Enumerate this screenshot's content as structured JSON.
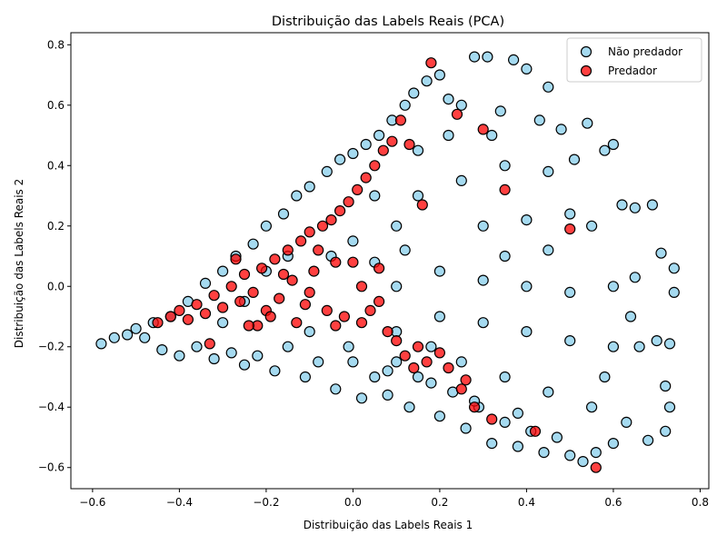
{
  "chart_data": {
    "type": "scatter",
    "title": "Distribuição das Labels Reais (PCA)",
    "xlabel": "Distribuição das Labels Reais  1",
    "ylabel": "Distribuição das Labels Reais  2",
    "xlim": [
      -0.65,
      0.82
    ],
    "ylim": [
      -0.67,
      0.84
    ],
    "xticks": [
      -0.6,
      -0.4,
      -0.2,
      0.0,
      0.2,
      0.4,
      0.6,
      0.8
    ],
    "yticks": [
      -0.6,
      -0.4,
      -0.2,
      0.0,
      0.2,
      0.4,
      0.6,
      0.8
    ],
    "xtick_labels": [
      "−0.6",
      "−0.4",
      "−0.2",
      "0.0",
      "0.2",
      "0.4",
      "0.6",
      "0.8"
    ],
    "ytick_labels": [
      "−0.6",
      "−0.4",
      "−0.2",
      "0.0",
      "0.2",
      "0.4",
      "0.6",
      "0.8"
    ],
    "grid": false,
    "legend_position": "top-right",
    "series": [
      {
        "name": "Não predador",
        "color": "#87CEEB",
        "edge_color": "#000000",
        "points": [
          [
            -0.58,
            -0.19
          ],
          [
            -0.55,
            -0.17
          ],
          [
            -0.52,
            -0.16
          ],
          [
            -0.5,
            -0.14
          ],
          [
            -0.48,
            -0.17
          ],
          [
            -0.46,
            -0.12
          ],
          [
            -0.44,
            -0.21
          ],
          [
            -0.42,
            -0.1
          ],
          [
            -0.4,
            -0.23
          ],
          [
            -0.38,
            -0.05
          ],
          [
            -0.36,
            -0.2
          ],
          [
            -0.34,
            0.01
          ],
          [
            -0.32,
            -0.24
          ],
          [
            -0.3,
            0.05
          ],
          [
            -0.28,
            -0.22
          ],
          [
            -0.27,
            0.1
          ],
          [
            -0.25,
            -0.26
          ],
          [
            -0.23,
            0.14
          ],
          [
            -0.22,
            -0.23
          ],
          [
            -0.2,
            0.2
          ],
          [
            -0.18,
            -0.28
          ],
          [
            -0.16,
            0.24
          ],
          [
            -0.15,
            -0.2
          ],
          [
            -0.13,
            0.3
          ],
          [
            -0.11,
            -0.3
          ],
          [
            -0.1,
            0.33
          ],
          [
            -0.08,
            -0.25
          ],
          [
            -0.06,
            0.38
          ],
          [
            -0.04,
            -0.34
          ],
          [
            -0.03,
            0.42
          ],
          [
            -0.01,
            -0.2
          ],
          [
            0.0,
            0.44
          ],
          [
            0.02,
            -0.37
          ],
          [
            0.03,
            0.47
          ],
          [
            0.05,
            -0.3
          ],
          [
            0.06,
            0.5
          ],
          [
            0.08,
            -0.36
          ],
          [
            0.09,
            0.55
          ],
          [
            0.1,
            -0.25
          ],
          [
            0.12,
            0.6
          ],
          [
            0.13,
            -0.4
          ],
          [
            0.14,
            0.64
          ],
          [
            0.15,
            -0.3
          ],
          [
            0.17,
            0.68
          ],
          [
            0.18,
            -0.2
          ],
          [
            0.2,
            0.7
          ],
          [
            0.2,
            -0.43
          ],
          [
            0.22,
            0.62
          ],
          [
            0.23,
            -0.35
          ],
          [
            0.25,
            0.6
          ],
          [
            0.26,
            -0.47
          ],
          [
            0.28,
            0.76
          ],
          [
            0.29,
            -0.4
          ],
          [
            0.31,
            0.76
          ],
          [
            0.32,
            -0.52
          ],
          [
            0.34,
            0.58
          ],
          [
            0.35,
            -0.45
          ],
          [
            0.37,
            0.75
          ],
          [
            0.38,
            -0.53
          ],
          [
            0.4,
            0.72
          ],
          [
            0.41,
            -0.48
          ],
          [
            0.43,
            0.55
          ],
          [
            0.44,
            -0.55
          ],
          [
            0.45,
            0.66
          ],
          [
            0.47,
            -0.5
          ],
          [
            0.48,
            0.52
          ],
          [
            0.5,
            -0.56
          ],
          [
            0.51,
            0.42
          ],
          [
            0.53,
            -0.58
          ],
          [
            0.54,
            0.54
          ],
          [
            0.56,
            -0.55
          ],
          [
            0.58,
            0.45
          ],
          [
            0.6,
            -0.52
          ],
          [
            0.6,
            0.47
          ],
          [
            0.62,
            0.27
          ],
          [
            0.63,
            -0.45
          ],
          [
            0.65,
            0.26
          ],
          [
            0.66,
            -0.2
          ],
          [
            0.68,
            -0.51
          ],
          [
            0.69,
            0.27
          ],
          [
            0.7,
            -0.18
          ],
          [
            0.71,
            0.11
          ],
          [
            0.72,
            -0.48
          ],
          [
            0.73,
            -0.19
          ],
          [
            0.74,
            0.06
          ],
          [
            0.74,
            -0.02
          ],
          [
            0.72,
            -0.33
          ],
          [
            0.73,
            -0.4
          ],
          [
            0.15,
            0.3
          ],
          [
            0.25,
            0.35
          ],
          [
            0.35,
            0.4
          ],
          [
            0.45,
            0.38
          ],
          [
            0.3,
            0.2
          ],
          [
            0.4,
            0.22
          ],
          [
            0.5,
            0.24
          ],
          [
            0.55,
            0.2
          ],
          [
            0.1,
            0.0
          ],
          [
            0.2,
            0.05
          ],
          [
            0.3,
            0.02
          ],
          [
            0.4,
            0.0
          ],
          [
            0.5,
            -0.02
          ],
          [
            0.6,
            0.0
          ],
          [
            0.65,
            0.03
          ],
          [
            0.2,
            -0.1
          ],
          [
            0.3,
            -0.12
          ],
          [
            0.4,
            -0.15
          ],
          [
            0.5,
            -0.18
          ],
          [
            0.6,
            -0.2
          ],
          [
            0.1,
            -0.15
          ],
          [
            0.25,
            -0.25
          ],
          [
            0.35,
            -0.3
          ],
          [
            0.45,
            -0.35
          ],
          [
            0.55,
            -0.4
          ],
          [
            0.0,
            0.15
          ],
          [
            0.1,
            0.2
          ],
          [
            -0.05,
            0.1
          ],
          [
            0.05,
            0.3
          ],
          [
            0.15,
            0.45
          ],
          [
            0.22,
            0.5
          ],
          [
            0.32,
            0.5
          ],
          [
            -0.1,
            -0.15
          ],
          [
            0.0,
            -0.25
          ],
          [
            0.08,
            -0.28
          ],
          [
            0.18,
            -0.32
          ],
          [
            0.28,
            -0.38
          ],
          [
            0.38,
            -0.42
          ],
          [
            0.58,
            -0.3
          ],
          [
            0.64,
            -0.1
          ],
          [
            -0.2,
            0.05
          ],
          [
            -0.15,
            0.1
          ],
          [
            -0.25,
            -0.05
          ],
          [
            -0.3,
            -0.12
          ],
          [
            0.05,
            0.08
          ],
          [
            0.12,
            0.12
          ],
          [
            0.35,
            0.1
          ],
          [
            0.45,
            0.12
          ]
        ]
      },
      {
        "name": "Predador",
        "color": "#FF0000",
        "edge_color": "#000000",
        "points": [
          [
            -0.45,
            -0.12
          ],
          [
            -0.42,
            -0.1
          ],
          [
            -0.4,
            -0.08
          ],
          [
            -0.38,
            -0.11
          ],
          [
            -0.36,
            -0.06
          ],
          [
            -0.34,
            -0.09
          ],
          [
            -0.32,
            -0.03
          ],
          [
            -0.3,
            -0.07
          ],
          [
            -0.28,
            0.0
          ],
          [
            -0.26,
            -0.05
          ],
          [
            -0.25,
            0.04
          ],
          [
            -0.23,
            -0.02
          ],
          [
            -0.21,
            0.06
          ],
          [
            -0.2,
            -0.08
          ],
          [
            -0.18,
            0.09
          ],
          [
            -0.17,
            -0.04
          ],
          [
            -0.15,
            0.12
          ],
          [
            -0.14,
            0.02
          ],
          [
            -0.12,
            0.15
          ],
          [
            -0.11,
            -0.06
          ],
          [
            -0.1,
            0.18
          ],
          [
            -0.09,
            0.05
          ],
          [
            -0.07,
            0.2
          ],
          [
            -0.06,
            -0.08
          ],
          [
            -0.05,
            0.22
          ],
          [
            -0.04,
            0.08
          ],
          [
            -0.03,
            0.25
          ],
          [
            -0.02,
            -0.1
          ],
          [
            -0.01,
            0.28
          ],
          [
            0.0,
            0.08
          ],
          [
            0.01,
            0.32
          ],
          [
            0.02,
            -0.12
          ],
          [
            0.03,
            0.36
          ],
          [
            0.04,
            -0.08
          ],
          [
            0.05,
            0.4
          ],
          [
            0.06,
            0.06
          ],
          [
            0.07,
            0.45
          ],
          [
            0.08,
            -0.15
          ],
          [
            0.09,
            0.48
          ],
          [
            0.1,
            -0.18
          ],
          [
            0.11,
            0.55
          ],
          [
            0.12,
            -0.23
          ],
          [
            0.13,
            0.47
          ],
          [
            0.14,
            -0.27
          ],
          [
            0.15,
            -0.2
          ],
          [
            0.16,
            0.27
          ],
          [
            0.17,
            -0.25
          ],
          [
            0.18,
            0.74
          ],
          [
            0.2,
            -0.22
          ],
          [
            0.22,
            -0.27
          ],
          [
            0.24,
            0.57
          ],
          [
            0.25,
            -0.34
          ],
          [
            0.26,
            -0.31
          ],
          [
            0.28,
            -0.4
          ],
          [
            0.3,
            0.52
          ],
          [
            0.32,
            -0.44
          ],
          [
            0.35,
            0.32
          ],
          [
            0.42,
            -0.48
          ],
          [
            0.5,
            0.19
          ],
          [
            0.56,
            -0.6
          ],
          [
            -0.33,
            -0.19
          ],
          [
            -0.27,
            0.09
          ],
          [
            -0.22,
            -0.13
          ],
          [
            -0.16,
            0.04
          ],
          [
            -0.13,
            -0.12
          ],
          [
            -0.08,
            0.12
          ],
          [
            -0.04,
            -0.13
          ],
          [
            0.02,
            0.0
          ],
          [
            0.06,
            -0.05
          ],
          [
            -0.1,
            -0.02
          ],
          [
            -0.19,
            -0.1
          ],
          [
            -0.24,
            -0.13
          ]
        ]
      }
    ]
  }
}
